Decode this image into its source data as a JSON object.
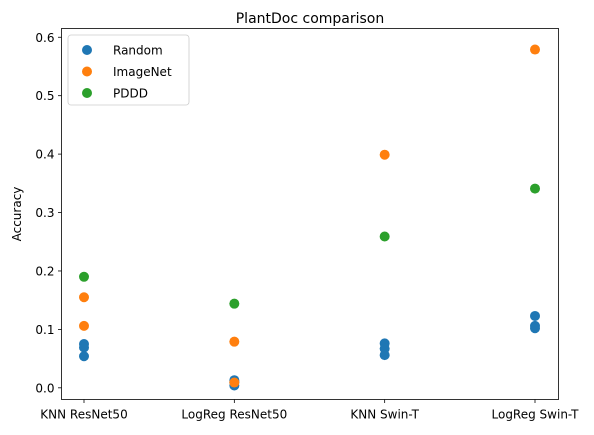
{
  "chart_data": {
    "type": "scatter",
    "title": "PlantDoc comparison",
    "xlabel": "",
    "ylabel": "Accuracy",
    "categories": [
      "KNN ResNet50",
      "LogReg ResNet50",
      "KNN Swin-T",
      "LogReg Swin-T"
    ],
    "ylim": [
      -0.02,
      0.615
    ],
    "yticks": [
      0.0,
      0.1,
      0.2,
      0.3,
      0.4,
      0.5,
      0.6
    ],
    "ytick_labels": [
      "0.0",
      "0.1",
      "0.2",
      "0.3",
      "0.4",
      "0.5",
      "0.6"
    ],
    "grid": false,
    "legend_position": "top-left",
    "series": [
      {
        "name": "Random",
        "color": "#1f77b4",
        "points": [
          {
            "category": "KNN ResNet50",
            "y": 0.075
          },
          {
            "category": "KNN ResNet50",
            "y": 0.069
          },
          {
            "category": "KNN ResNet50",
            "y": 0.054
          },
          {
            "category": "LogReg ResNet50",
            "y": 0.013
          },
          {
            "category": "LogReg ResNet50",
            "y": 0.009
          },
          {
            "category": "LogReg ResNet50",
            "y": 0.004
          },
          {
            "category": "KNN Swin-T",
            "y": 0.076
          },
          {
            "category": "KNN Swin-T",
            "y": 0.067
          },
          {
            "category": "KNN Swin-T",
            "y": 0.056
          },
          {
            "category": "LogReg Swin-T",
            "y": 0.123
          },
          {
            "category": "LogReg Swin-T",
            "y": 0.106
          },
          {
            "category": "LogReg Swin-T",
            "y": 0.102
          }
        ]
      },
      {
        "name": "ImageNet",
        "color": "#ff7f0e",
        "points": [
          {
            "category": "KNN ResNet50",
            "y": 0.155
          },
          {
            "category": "KNN ResNet50",
            "y": 0.106
          },
          {
            "category": "LogReg ResNet50",
            "y": 0.079
          },
          {
            "category": "LogReg ResNet50",
            "y": 0.009
          },
          {
            "category": "KNN Swin-T",
            "y": 0.399
          },
          {
            "category": "LogReg Swin-T",
            "y": 0.579
          }
        ]
      },
      {
        "name": "PDDD",
        "color": "#2ca02c",
        "points": [
          {
            "category": "KNN ResNet50",
            "y": 0.19
          },
          {
            "category": "LogReg ResNet50",
            "y": 0.144
          },
          {
            "category": "KNN Swin-T",
            "y": 0.259
          },
          {
            "category": "LogReg Swin-T",
            "y": 0.341
          }
        ]
      }
    ]
  }
}
